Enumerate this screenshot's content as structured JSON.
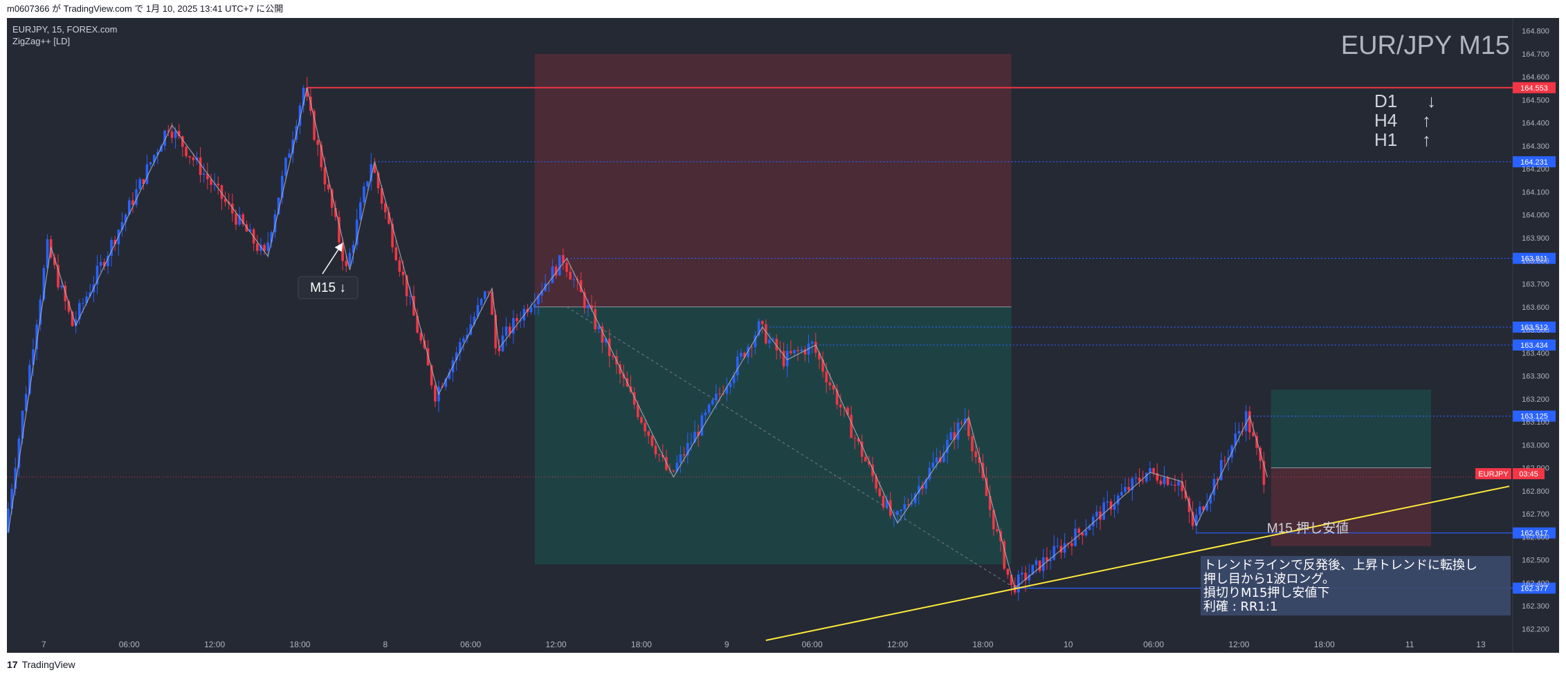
{
  "header": {
    "publish_text": "m0607366 が TradingView.com で 1月 10, 2025 13:41 UTC+7 に公開"
  },
  "footer": {
    "logo_glyph": "17",
    "brand": "TradingView"
  },
  "chart_info": {
    "symbol_line": "EURJPY, 15, FOREX.com",
    "indicator": "ZigZag++ [LD]"
  },
  "watermark": "EUR/JPY M15",
  "trend_list": [
    {
      "tf": "D1",
      "arrow": "↓"
    },
    {
      "tf": "H4",
      "arrow": "↑"
    },
    {
      "tf": "H1",
      "arrow": "↑"
    }
  ],
  "annotations": {
    "m15_label": "M15 ↓",
    "support_label": "M15 押し安値",
    "note_lines": [
      "トレンドラインで反発後、上昇トレンドに転換し",
      "押し目から1波ロング。",
      "損切りM15押し安値下",
      "利確 : RR1:1"
    ]
  },
  "symbol_tag": {
    "symbol": "EURJPY",
    "countdown": "03:45"
  },
  "colors": {
    "background": "#252934",
    "candle_up": "#2962ff",
    "candle_down": "#f23645",
    "zigzag": "#b2b5be",
    "trendline": "#ffeb3b",
    "resistance": "#f23645",
    "level_line": "#2962ff",
    "risk_zone": "#f23645",
    "reward_zone": "#089981"
  },
  "chart_data": {
    "type": "candlestick",
    "symbol": "EURJPY",
    "timeframe": "15",
    "ylim": [
      162.15,
      164.82
    ],
    "y_ticks": [
      "164.800",
      "164.700",
      "164.600",
      "164.500",
      "164.400",
      "164.300",
      "164.200",
      "164.100",
      "164.000",
      "163.900",
      "163.800",
      "163.700",
      "163.600",
      "163.500",
      "163.400",
      "163.300",
      "163.200",
      "163.100",
      "163.000",
      "162.900",
      "162.800",
      "162.700",
      "162.600",
      "162.500",
      "162.400",
      "162.300",
      "162.200"
    ],
    "x_ticks": [
      "7",
      "06:00",
      "12:00",
      "18:00",
      "8",
      "06:00",
      "12:00",
      "18:00",
      "9",
      "06:00",
      "12:00",
      "18:00",
      "10",
      "06:00",
      "12:00",
      "18:00",
      "11",
      "13"
    ],
    "x_tick_bars": [
      10,
      34,
      58,
      82,
      106,
      130,
      154,
      178,
      202,
      226,
      250,
      274,
      298,
      322,
      346,
      370,
      394,
      414
    ],
    "zigzag": [
      {
        "bar": 0,
        "price": 162.62
      },
      {
        "bar": 12,
        "price": 163.86
      },
      {
        "bar": 19,
        "price": 163.52
      },
      {
        "bar": 46,
        "price": 164.39
      },
      {
        "bar": 73,
        "price": 163.82
      },
      {
        "bar": 84,
        "price": 164.553
      },
      {
        "bar": 96,
        "price": 163.76
      },
      {
        "bar": 103,
        "price": 164.231
      },
      {
        "bar": 121,
        "price": 163.22
      },
      {
        "bar": 136,
        "price": 163.68
      },
      {
        "bar": 138,
        "price": 163.42
      },
      {
        "bar": 157,
        "price": 163.811
      },
      {
        "bar": 187,
        "price": 162.86
      },
      {
        "bar": 212,
        "price": 163.512
      },
      {
        "bar": 219,
        "price": 163.37
      },
      {
        "bar": 227,
        "price": 163.434
      },
      {
        "bar": 250,
        "price": 162.66
      },
      {
        "bar": 270,
        "price": 163.12
      },
      {
        "bar": 283,
        "price": 162.377
      },
      {
        "bar": 302,
        "price": 162.62
      },
      {
        "bar": 321,
        "price": 162.88
      },
      {
        "bar": 330,
        "price": 162.84
      },
      {
        "bar": 334,
        "price": 162.65
      },
      {
        "bar": 349,
        "price": 163.125
      },
      {
        "bar": 354,
        "price": 162.86
      }
    ],
    "last_bar": 354,
    "last_price": 162.86,
    "levels": [
      {
        "price": 164.553,
        "label": "164.553",
        "color": "#f23645",
        "style": "solid",
        "from_bar": 84
      },
      {
        "price": 164.231,
        "label": "164.231",
        "color": "#2962ff",
        "style": "dotted",
        "from_bar": 103
      },
      {
        "price": 163.811,
        "label": "163.811",
        "color": "#2962ff",
        "style": "dotted",
        "from_bar": 157
      },
      {
        "price": 163.512,
        "label": "163.512",
        "color": "#2962ff",
        "style": "dotted",
        "from_bar": 212
      },
      {
        "price": 163.434,
        "label": "163.434",
        "color": "#2962ff",
        "style": "dotted",
        "from_bar": 227
      },
      {
        "price": 163.125,
        "label": "163.125",
        "color": "#2962ff",
        "style": "dotted",
        "from_bar": 349
      },
      {
        "price": 162.617,
        "label": "162.617",
        "color": "#2962ff",
        "style": "thin",
        "from_bar": 334
      },
      {
        "price": 162.377,
        "label": "162.377",
        "color": "#2962ff",
        "style": "thin",
        "from_bar": 283
      }
    ],
    "trendline": {
      "from_bar": 213,
      "from_price": 162.15,
      "to_bar": 422,
      "to_price": 162.82
    },
    "positions": [
      {
        "kind": "short",
        "start_bar": 148,
        "end_bar": 282,
        "entry": 163.6,
        "stop": 164.7,
        "target": 162.48
      },
      {
        "kind": "long",
        "start_bar": 355,
        "end_bar": 400,
        "entry": 162.9,
        "stop": 162.56,
        "target": 163.24
      }
    ],
    "grid": false
  }
}
